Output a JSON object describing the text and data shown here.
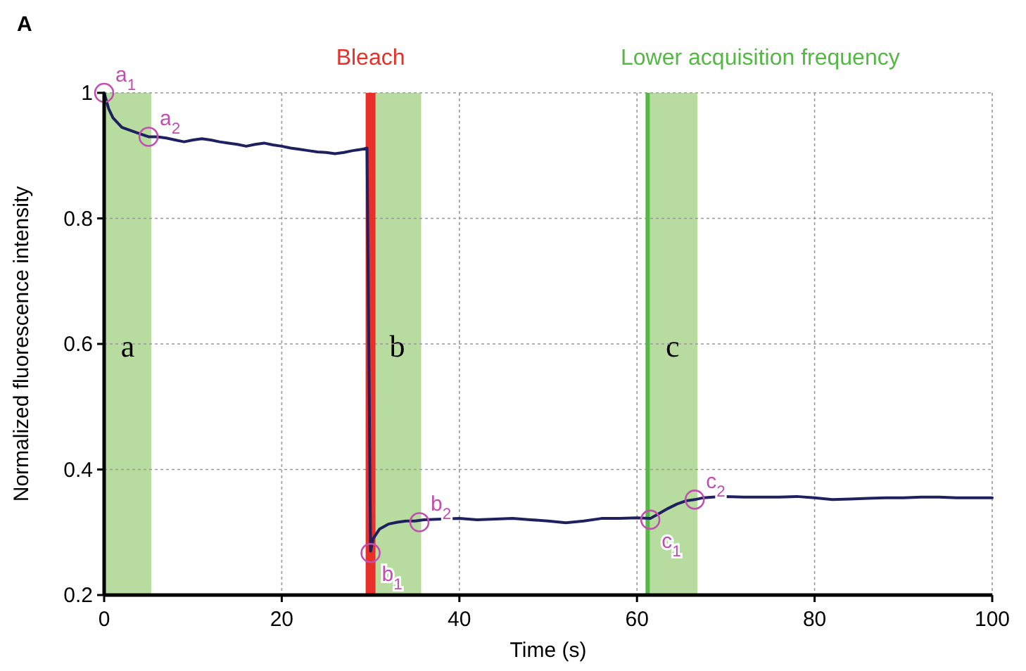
{
  "chart_data": {
    "type": "line",
    "title": "A",
    "xlabel": "Time (s)",
    "ylabel": "Normalized fluorescence intensity",
    "xlim": [
      0,
      100
    ],
    "xticks": [
      0,
      20,
      40,
      60,
      80,
      100
    ],
    "ylim": [
      0.2,
      1
    ],
    "yticks": [
      0.2,
      0.4,
      0.6,
      0.8,
      1
    ],
    "grid": true,
    "series": [
      {
        "color": "#1f2060",
        "x": [
          0,
          0.5,
          1,
          2,
          3,
          4,
          5,
          6,
          7,
          8,
          9,
          10,
          11,
          12,
          13,
          14,
          15,
          16,
          17,
          18,
          19,
          20,
          21,
          22,
          23,
          24,
          25,
          26,
          27,
          28,
          29,
          29.6,
          29.8,
          30,
          30.3,
          31,
          32,
          33,
          34,
          35,
          36,
          38,
          40,
          42,
          44,
          46,
          48,
          50,
          52,
          54,
          56,
          58,
          60,
          61.5,
          62.5,
          63.5,
          64.5,
          65.5,
          66.5,
          67.5,
          68.5,
          70,
          72,
          74,
          76,
          78,
          80,
          82,
          84,
          86,
          88,
          90,
          92,
          94,
          96,
          98,
          100
        ],
        "values": [
          1.0,
          0.975,
          0.96,
          0.945,
          0.94,
          0.935,
          0.93,
          0.93,
          0.928,
          0.925,
          0.922,
          0.925,
          0.927,
          0.925,
          0.922,
          0.92,
          0.918,
          0.915,
          0.918,
          0.92,
          0.917,
          0.915,
          0.912,
          0.91,
          0.908,
          0.906,
          0.905,
          0.903,
          0.905,
          0.908,
          0.91,
          0.912,
          0.6,
          0.27,
          0.29,
          0.305,
          0.313,
          0.316,
          0.318,
          0.318,
          0.32,
          0.321,
          0.322,
          0.32,
          0.321,
          0.322,
          0.32,
          0.318,
          0.315,
          0.318,
          0.322,
          0.322,
          0.323,
          0.322,
          0.33,
          0.338,
          0.345,
          0.35,
          0.352,
          0.355,
          0.356,
          0.357,
          0.356,
          0.356,
          0.356,
          0.357,
          0.355,
          0.352,
          0.353,
          0.354,
          0.355,
          0.355,
          0.356,
          0.356,
          0.355,
          0.355,
          0.355
        ]
      }
    ],
    "bands": [
      {
        "axis": "x",
        "from": 0,
        "to": 5.3,
        "label": "a",
        "color": "#b8dca0"
      },
      {
        "axis": "x",
        "from": 30.3,
        "to": 35.7,
        "label": "b",
        "color": "#b8dca0"
      },
      {
        "axis": "x",
        "from": 61.2,
        "to": 66.8,
        "label": "c",
        "color": "#b8dca0"
      }
    ],
    "ref_lines": [
      {
        "axis": "x",
        "value": 30,
        "label": "Bleach",
        "color": "#e8302a"
      },
      {
        "axis": "x",
        "value": 61.2,
        "label": "Lower acquisition frequency",
        "color": "#55b845"
      }
    ],
    "annotations": [
      {
        "text": "a$_{1}$",
        "x": 0,
        "y": 1.0
      },
      {
        "text": "a$_{2}$",
        "x": 5,
        "y": 0.93
      },
      {
        "text": "b$_{1}$",
        "x": 30,
        "y": 0.267
      },
      {
        "text": "b$_{2}$",
        "x": 35.5,
        "y": 0.316
      },
      {
        "text": "c$_{1}$",
        "x": 61.5,
        "y": 0.32
      },
      {
        "text": "c$_{2}$",
        "x": 66.5,
        "y": 0.352
      }
    ]
  }
}
